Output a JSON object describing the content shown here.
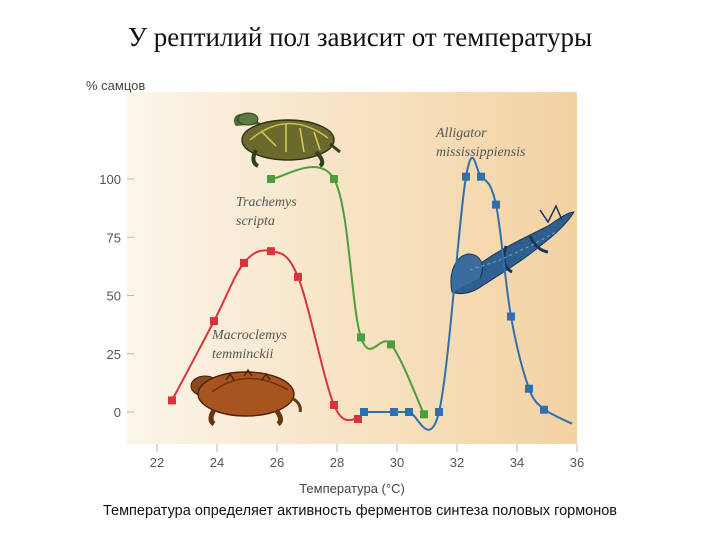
{
  "title": "У рептилий пол зависит от температуры",
  "caption": "Температура определяет активность ферментов синтеза половых гормонов",
  "chart_data": {
    "type": "line",
    "ylabel": "% самцов",
    "xlabel": "Температура (°C)",
    "xlim": [
      21.5,
      36
    ],
    "ylim": [
      0,
      100
    ],
    "x_ticks": [
      22,
      24,
      26,
      28,
      30,
      32,
      34,
      36
    ],
    "y_ticks": [
      0,
      25,
      50,
      75,
      100
    ],
    "grid": false,
    "series": [
      {
        "name": "Trachemys scripta",
        "color": "#4a9e3c",
        "x": [
          25.8,
          27.9,
          28.8,
          29.8,
          30.9
        ],
        "y": [
          100,
          100,
          32,
          29,
          -1
        ]
      },
      {
        "name": "Macroclemys temminckii",
        "color": "#d9343d",
        "x": [
          22.5,
          23.9,
          24.9,
          25.8,
          26.7,
          27.9,
          28.7
        ],
        "y": [
          5,
          39,
          64,
          69,
          58,
          3,
          -3
        ]
      },
      {
        "name": "Alligator mississippiensis",
        "color": "#2f6fad",
        "x": [
          28.9,
          29.9,
          30.4,
          31.4,
          32.3,
          32.8,
          33.3,
          33.8,
          34.4,
          34.9
        ],
        "y": [
          0,
          0,
          0,
          0,
          101,
          101,
          89,
          41,
          10,
          1
        ]
      }
    ]
  },
  "icons": {
    "slider_turtle": "turtle-icon",
    "snapping_turtle": "snapping-turtle-icon",
    "alligator": "alligator-icon"
  }
}
